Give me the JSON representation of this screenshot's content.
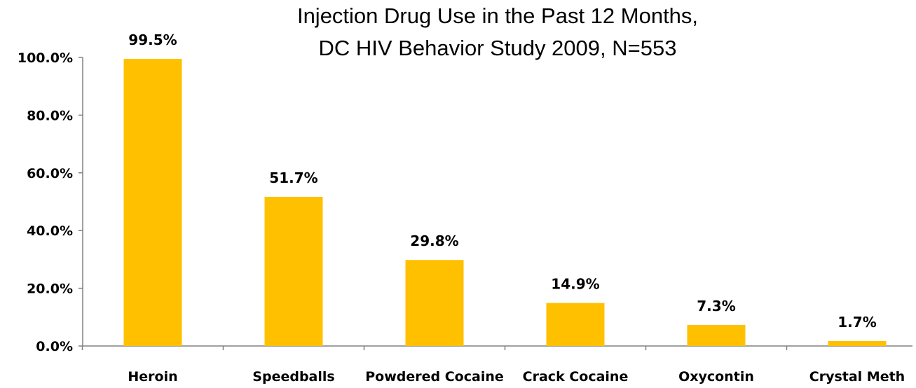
{
  "chart_data": {
    "type": "bar",
    "title_lines": [
      "Injection Drug Use in the Past 12 Months,",
      "DC HIV Behavior Study 2009, N=553"
    ],
    "categories": [
      "Heroin",
      "Speedballs",
      "Powdered Cocaine",
      "Crack Cocaine",
      "Oxycontin",
      "Crystal Meth"
    ],
    "values": [
      99.5,
      51.7,
      29.8,
      14.9,
      7.3,
      1.7
    ],
    "data_labels": [
      "99.5%",
      "51.7%",
      "29.8%",
      "14.9%",
      "7.3%",
      "1.7%"
    ],
    "y_ticks": [
      0,
      20,
      40,
      60,
      80,
      100
    ],
    "y_tick_labels": [
      "0.0%",
      "20.0%",
      "40.0%",
      "60.0%",
      "80.0%",
      "100.0%"
    ],
    "ylim": [
      0,
      100
    ],
    "grid": false,
    "legend": "none",
    "bar_color": "#FFC000"
  }
}
